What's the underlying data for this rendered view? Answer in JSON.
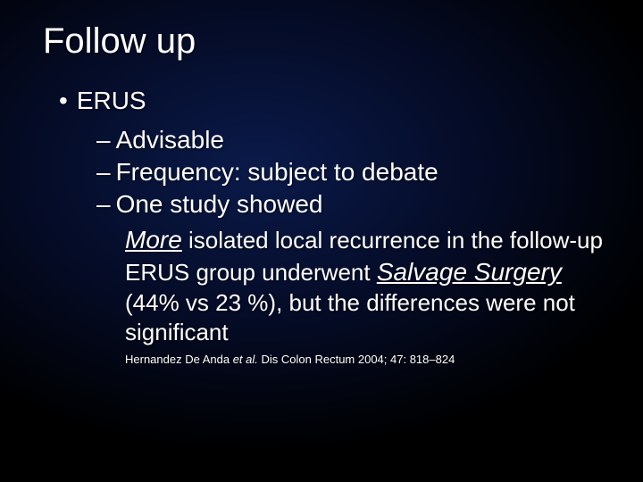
{
  "title": "Follow up",
  "l1": {
    "marker": "•",
    "text": "ERUS"
  },
  "l2": {
    "marker": "–",
    "a": "Advisable",
    "b": "Frequency: subject to debate",
    "c": "One study showed"
  },
  "para": {
    "em1": "More",
    "seg1": " isolated local recurrence in the follow-up ERUS group underwent ",
    "em2": "Salvage Surgery",
    "seg2": " (44% vs 23 %), but the differences were not significant"
  },
  "citation": {
    "pre": "Hernandez De Anda ",
    "ital": "et al.",
    "post": " Dis Colon Rectum 2004; 47: 818–824"
  },
  "colors": {
    "text": "#ffffff",
    "bg_center": "#0a1a4a",
    "bg_outer": "#000000"
  }
}
